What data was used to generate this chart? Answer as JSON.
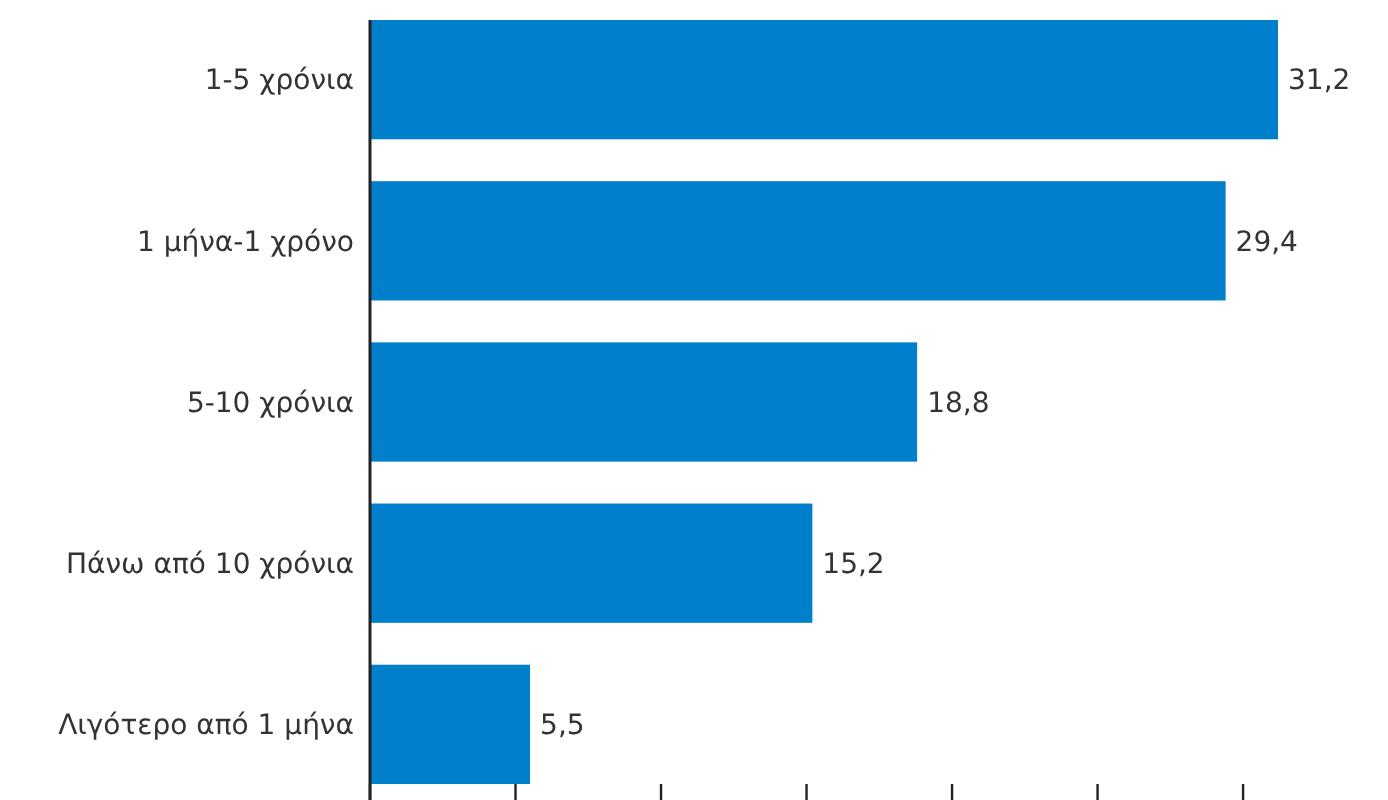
{
  "chart_data": {
    "type": "bar",
    "orientation": "horizontal",
    "categories": [
      "1-5 χρόνια",
      "1 μήνα-1 χρόνο",
      "5-10 χρόνια",
      "Πάνω από 10 χρόνια",
      "Λιγότερο από 1 μήνα"
    ],
    "values": [
      31.2,
      29.4,
      18.8,
      15.2,
      5.5
    ],
    "value_labels": [
      "31,2",
      "29,4",
      "18,8",
      "15,2",
      "5,5"
    ],
    "color": "#0080cc",
    "xticks": [
      {
        "value": 0,
        "label": null
      },
      {
        "value": 5,
        "label": null
      },
      {
        "value": 10,
        "label": null
      },
      {
        "value": 15,
        "label": null
      },
      {
        "value": 20,
        "label": null
      },
      {
        "value": 25,
        "label": null
      },
      {
        "value": 30,
        "label": null
      }
    ],
    "tick_labels": "y",
    "grid": false
  }
}
